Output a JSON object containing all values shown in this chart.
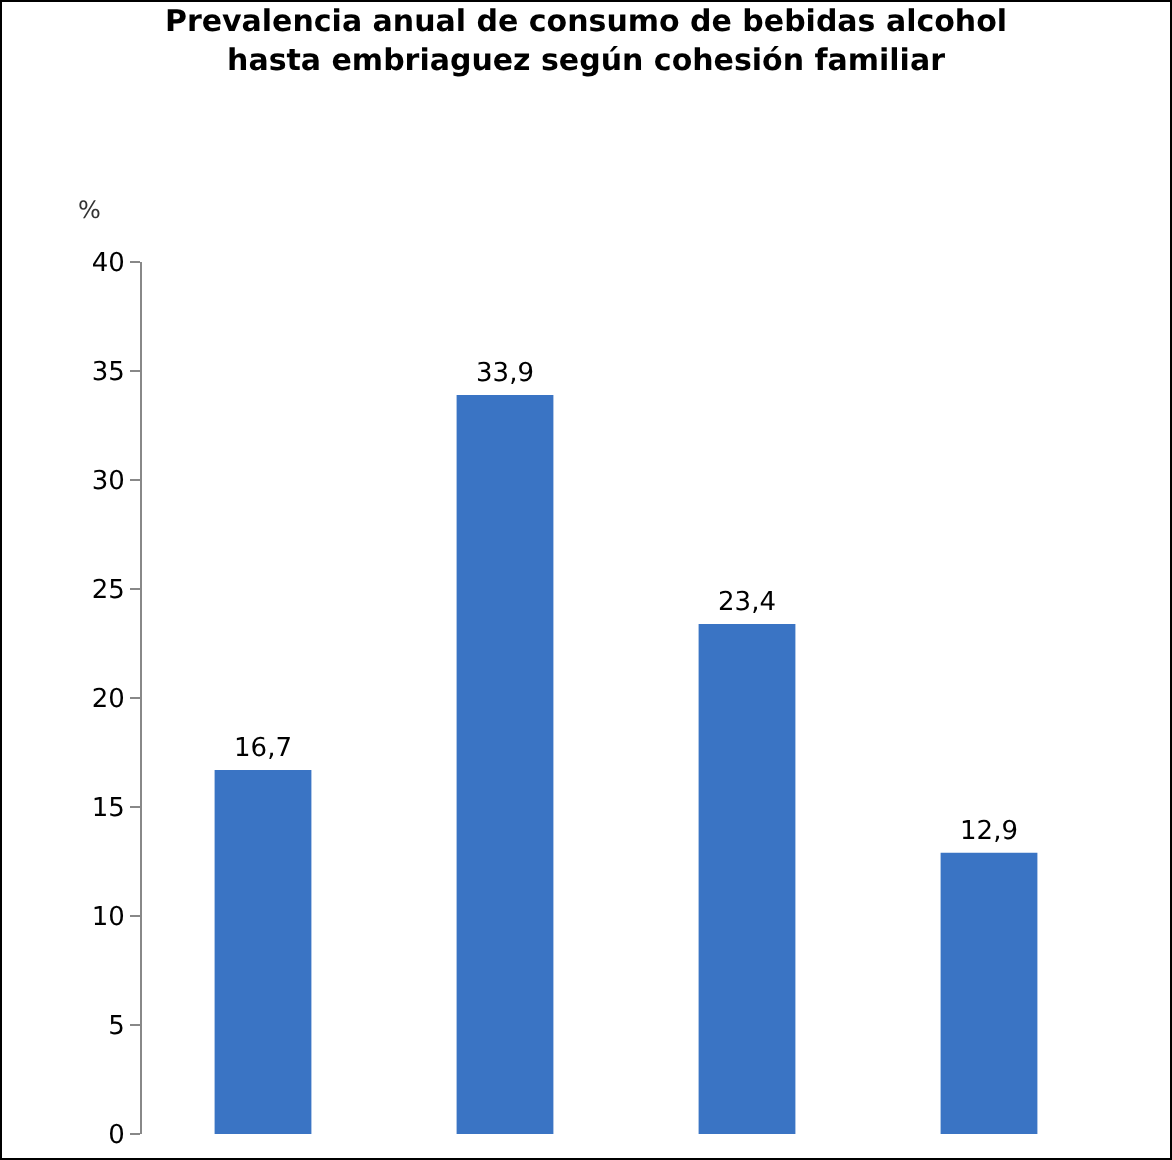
{
  "chart_data": {
    "type": "bar",
    "title": "Prevalencia anual de consumo de bebidas alcohol hasta embriaguez según cohesión familiar",
    "ylabel": "%",
    "categories": [
      null,
      null,
      null,
      null
    ],
    "values": [
      16.7,
      33.9,
      23.4,
      12.9
    ],
    "value_labels": [
      "16,7",
      "33,9",
      "23,4",
      "12,9"
    ],
    "color": "#3a74c4",
    "ylim": [
      0,
      40
    ],
    "yticks": [
      0,
      5,
      10,
      15,
      20,
      25,
      30,
      35,
      40
    ],
    "tick_labels": "y"
  }
}
